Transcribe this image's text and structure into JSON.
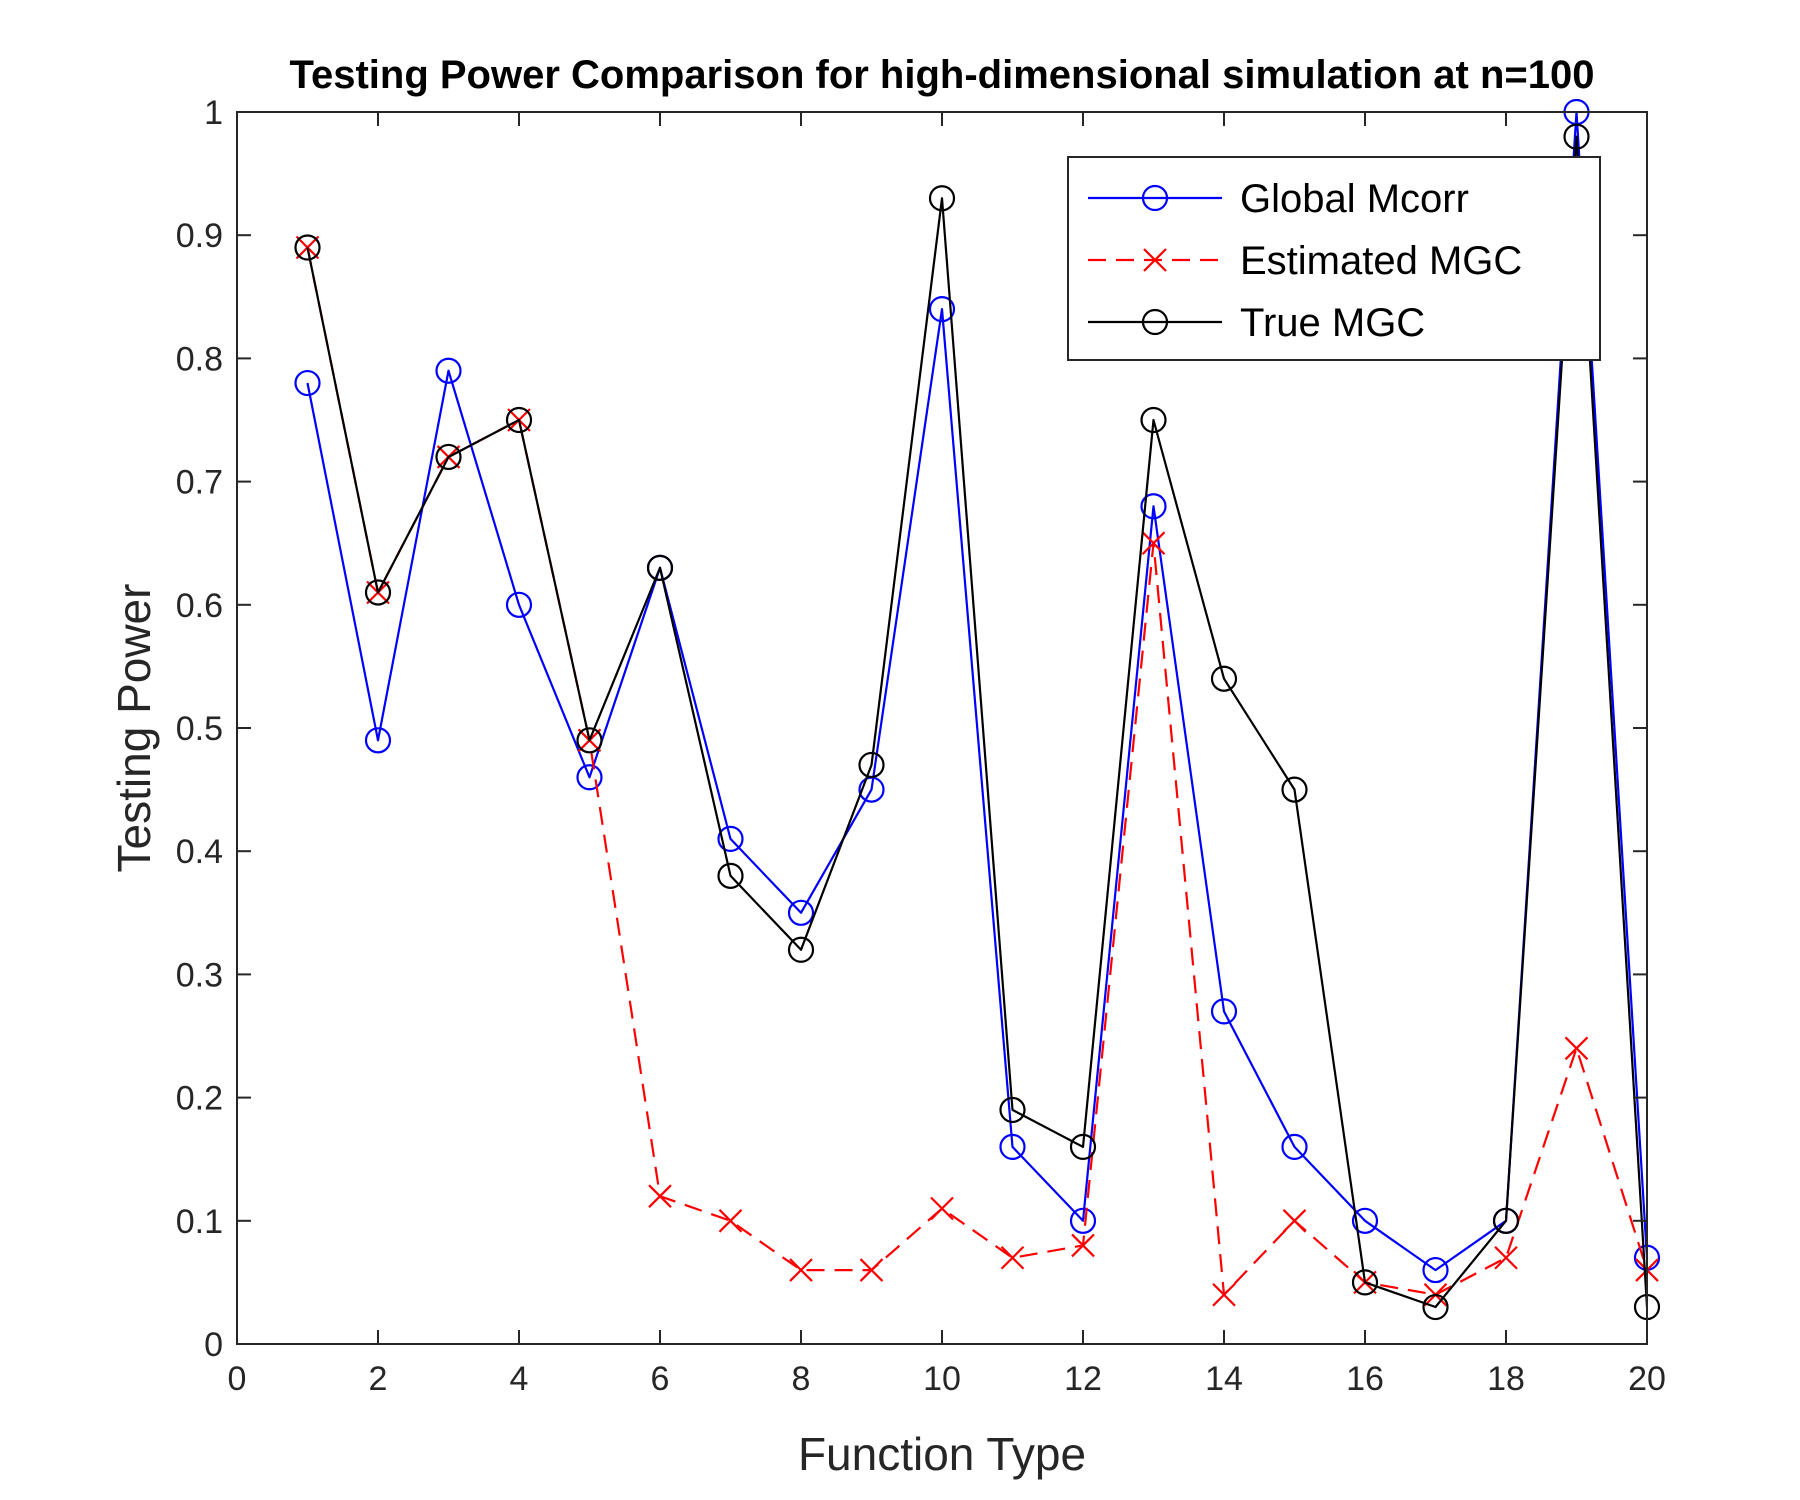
{
  "chart_data": {
    "type": "line",
    "title": "Testing Power Comparison for high-dimensional simulation at n=100",
    "xlabel": "Function Type",
    "ylabel": "Testing Power",
    "xlim": [
      0,
      20
    ],
    "ylim": [
      0,
      1
    ],
    "xticks": [
      0,
      2,
      4,
      6,
      8,
      10,
      12,
      14,
      16,
      18,
      20
    ],
    "yticks": [
      0,
      0.1,
      0.2,
      0.3,
      0.4,
      0.5,
      0.6,
      0.7,
      0.8,
      0.9,
      1
    ],
    "grid": false,
    "legend_position": "top-right",
    "x": [
      1,
      2,
      3,
      4,
      5,
      6,
      7,
      8,
      9,
      10,
      11,
      12,
      13,
      14,
      15,
      16,
      17,
      18,
      19,
      20
    ],
    "series": [
      {
        "name": "Global Mcorr",
        "color": "#0000ff",
        "marker": "circle",
        "line_style": "solid",
        "values": [
          0.78,
          0.49,
          0.79,
          0.6,
          0.46,
          0.63,
          0.41,
          0.35,
          0.45,
          0.84,
          0.16,
          0.1,
          0.68,
          0.27,
          0.16,
          0.1,
          0.06,
          0.1,
          1.0,
          0.07
        ]
      },
      {
        "name": "Estimated MGC",
        "color": "#ff0000",
        "marker": "x",
        "line_style": "dashed",
        "values": [
          0.89,
          0.61,
          0.72,
          0.75,
          0.49,
          0.12,
          0.1,
          0.06,
          0.06,
          0.11,
          0.07,
          0.08,
          0.65,
          0.04,
          0.1,
          0.05,
          0.04,
          0.07,
          0.24,
          0.06
        ]
      },
      {
        "name": "True MGC",
        "color": "#000000",
        "marker": "circle",
        "line_style": "solid",
        "values": [
          0.89,
          0.61,
          0.72,
          0.75,
          0.49,
          0.63,
          0.38,
          0.32,
          0.47,
          0.93,
          0.19,
          0.16,
          0.75,
          0.54,
          0.45,
          0.05,
          0.03,
          0.1,
          0.98,
          0.03
        ]
      }
    ]
  }
}
